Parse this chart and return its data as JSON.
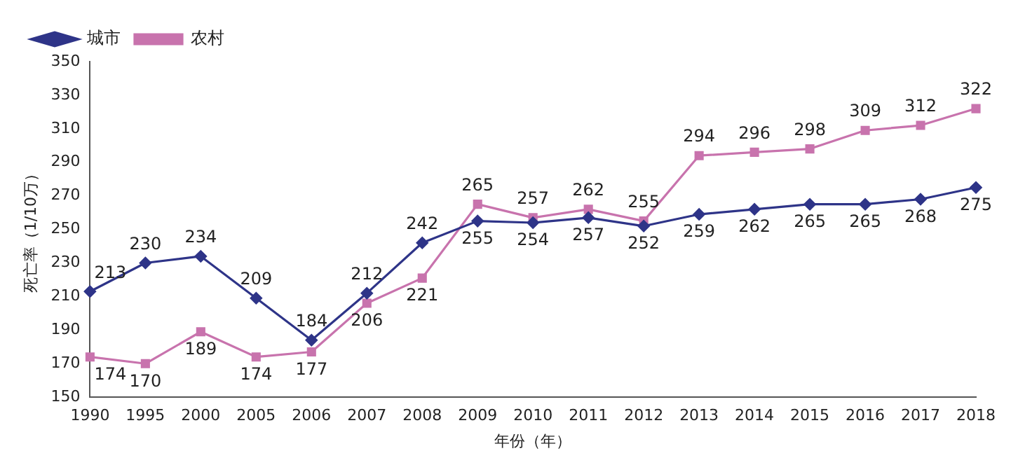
{
  "chart_data": {
    "type": "line",
    "xlabel": "年份（年）",
    "ylabel": "死亡率（1/10万）",
    "categories": [
      "1990",
      "1995",
      "2000",
      "2005",
      "2006",
      "2007",
      "2008",
      "2009",
      "2010",
      "2011",
      "2012",
      "2013",
      "2014",
      "2015",
      "2016",
      "2017",
      "2018"
    ],
    "series": [
      {
        "name": "城市",
        "color": "#2e3488",
        "marker": "diamond",
        "values": [
          213,
          230,
          234,
          209,
          184,
          212,
          242,
          255,
          254,
          257,
          252,
          259,
          262,
          265,
          265,
          268,
          275
        ]
      },
      {
        "name": "农村",
        "color": "#c873ad",
        "marker": "square",
        "values": [
          174,
          170,
          189,
          174,
          177,
          206,
          221,
          265,
          257,
          262,
          255,
          294,
          296,
          298,
          309,
          312,
          322
        ]
      }
    ],
    "ylim": [
      150,
      350
    ],
    "yticks": [
      150,
      170,
      190,
      210,
      230,
      250,
      270,
      290,
      310,
      330,
      350
    ],
    "grid": false,
    "legend": "top left",
    "data_labels": true,
    "line_style": "solid"
  }
}
